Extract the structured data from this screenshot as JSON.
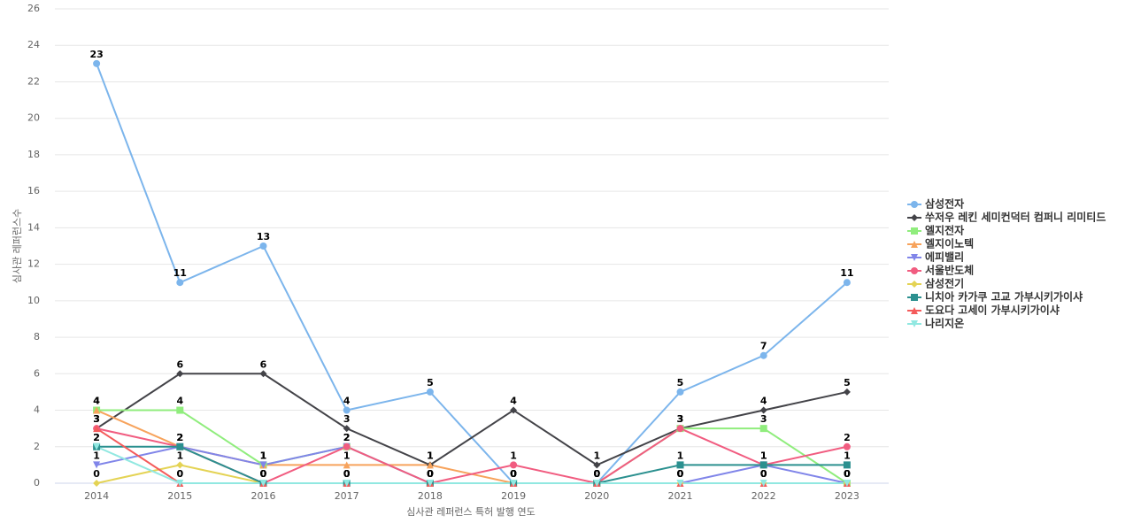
{
  "chart_data": {
    "type": "line",
    "x_label": "심사관 레퍼런스 특허 발행 연도",
    "y_label": "심사관 레퍼런스수",
    "categories": [
      "2014",
      "2015",
      "2016",
      "2017",
      "2018",
      "2019",
      "2020",
      "2021",
      "2022",
      "2023"
    ],
    "ylim": [
      0,
      26
    ],
    "yticks": [
      0,
      2,
      4,
      6,
      8,
      10,
      12,
      14,
      16,
      18,
      20,
      22,
      24,
      26
    ],
    "grid": true,
    "legend": "right",
    "series": [
      {
        "name": "삼성전자",
        "color": "#7cb5ec",
        "marker": "circle",
        "values": [
          23,
          11,
          13,
          4,
          5,
          0,
          0,
          5,
          7,
          11
        ]
      },
      {
        "name": "쑤저우 레킨 세미컨덕터 컴퍼니 리미티드",
        "color": "#434348",
        "marker": "diamond",
        "values": [
          3,
          6,
          6,
          3,
          1,
          4,
          1,
          3,
          4,
          5
        ]
      },
      {
        "name": "엘지전자",
        "color": "#90ed7d",
        "marker": "square",
        "values": [
          4,
          4,
          1,
          2,
          0,
          0,
          0,
          3,
          3,
          0
        ]
      },
      {
        "name": "엘지이노텍",
        "color": "#f7a35c",
        "marker": "triangle",
        "values": [
          4,
          2,
          1,
          1,
          1,
          0,
          0,
          0,
          0,
          0
        ]
      },
      {
        "name": "에피밸리",
        "color": "#8085e9",
        "marker": "triangle-down",
        "values": [
          1,
          2,
          1,
          2,
          0,
          0,
          0,
          0,
          1,
          0
        ]
      },
      {
        "name": "서울반도체",
        "color": "#f15c80",
        "marker": "circle",
        "values": [
          3,
          2,
          0,
          2,
          0,
          1,
          0,
          3,
          1,
          2
        ]
      },
      {
        "name": "삼성전기",
        "color": "#e4d354",
        "marker": "diamond",
        "values": [
          0,
          1,
          0,
          0,
          0,
          0,
          0,
          0,
          0,
          0
        ]
      },
      {
        "name": "니치아 카가쿠 고교 가부시키가이샤",
        "color": "#2b908f",
        "marker": "square",
        "values": [
          2,
          2,
          0,
          0,
          0,
          0,
          0,
          1,
          1,
          1
        ]
      },
      {
        "name": "도요다 고세이 가부시키가이샤",
        "color": "#f45b5b",
        "marker": "triangle",
        "values": [
          3,
          0,
          0,
          0,
          0,
          0,
          0,
          0,
          0,
          0
        ]
      },
      {
        "name": "나리지온",
        "color": "#91e8e1",
        "marker": "triangle-down",
        "values": [
          2,
          0,
          0,
          0,
          0,
          0,
          0,
          0,
          0,
          0
        ]
      }
    ]
  }
}
